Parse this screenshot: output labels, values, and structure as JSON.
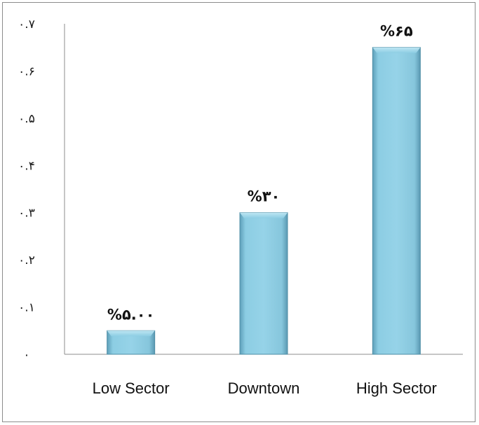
{
  "chart_data": {
    "type": "bar",
    "categories": [
      "Low Sector",
      "Downtown",
      "High Sector"
    ],
    "values": [
      0.05,
      0.3,
      0.65
    ],
    "data_labels": [
      "%۵.۰۰",
      "%۳۰",
      "%۶۵"
    ],
    "yticks": [
      0,
      0.1,
      0.2,
      0.3,
      0.4,
      0.5,
      0.6,
      0.7
    ],
    "ytick_labels": [
      "۰",
      "۰.۱",
      "۰.۲",
      "۰.۳",
      "۰.۴",
      "۰.۵",
      "۰.۶",
      "۰.۷"
    ],
    "ylim": [
      0,
      0.7
    ],
    "grid": false,
    "legend": "none",
    "bar_color": "#86c9e0",
    "bar_edge_color": "#4e8ea6"
  }
}
